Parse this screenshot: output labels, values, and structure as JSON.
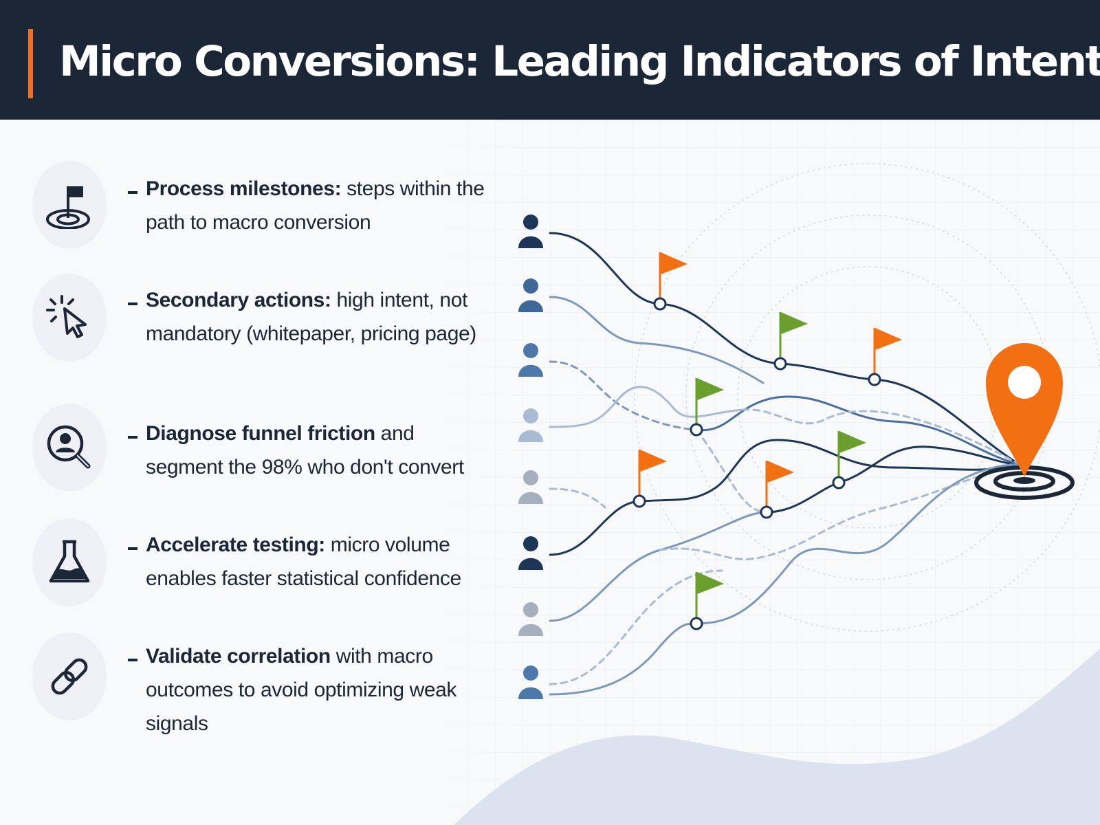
{
  "header": {
    "title": "Micro Conversions: Leading Indicators of Intent"
  },
  "bullets": [
    {
      "icon": "flag-target-icon",
      "bold": "Process milestones:",
      "text": " steps within the path to macro conversion"
    },
    {
      "icon": "cursor-click-icon",
      "bold": "Secondary actions:",
      "text": " high intent, not mandatory (whitepaper, pricing page)"
    },
    {
      "icon": "user-search-icon",
      "bold": "Diagnose funnel friction",
      "text": " and segment the 98% who don't convert"
    },
    {
      "icon": "flask-icon",
      "bold": "Accelerate testing:",
      "text": " micro volume enables faster statistical confidence"
    },
    {
      "icon": "link-icon",
      "bold": "Validate correlation",
      "text": " with macro outcomes to avoid optimizing weak signals"
    }
  ],
  "diagram": {
    "users_count": 8,
    "milestone_flags": 8,
    "destination": "map-pin-target-icon"
  },
  "colors": {
    "header_bg": "#1b2637",
    "accent_orange": "#f26f12",
    "flag_green": "#6a9f2e",
    "navy": "#1d3557",
    "steel_blue": "#4a6f9c",
    "light_blue": "#a9bbd2",
    "bg": "#f8f9fb"
  }
}
